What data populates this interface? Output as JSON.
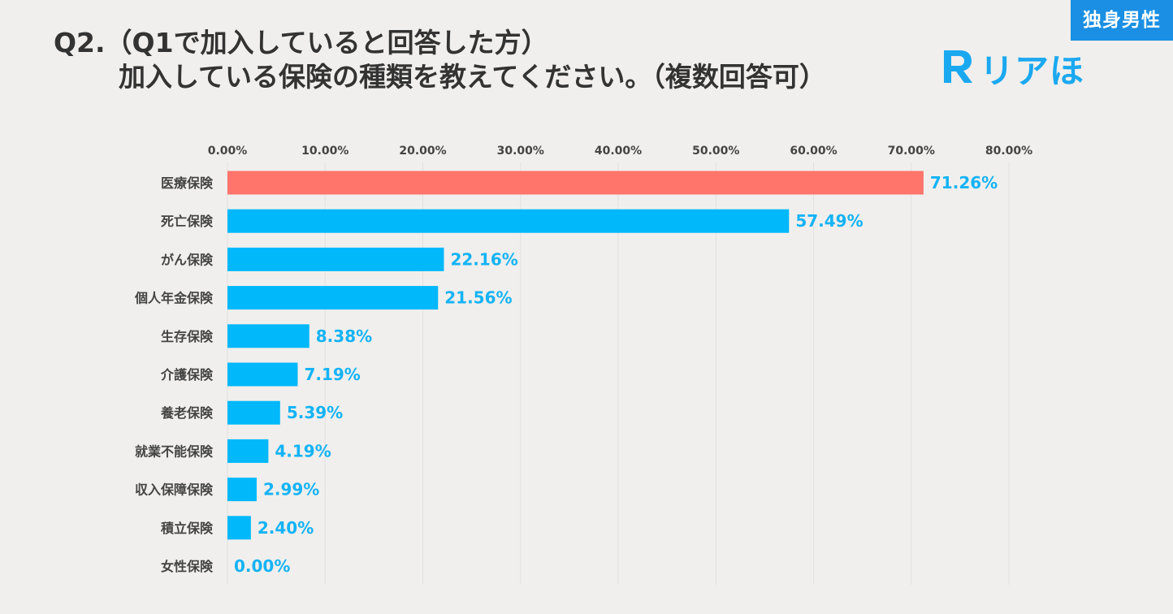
{
  "badge": "独身男性",
  "title": {
    "line1": "Q2.（Q1で加入していると回答した方）",
    "line2": "加入している保険の種類を教えてください。（複数回答可）"
  },
  "logo": {
    "text": "リアほ",
    "letter": "R"
  },
  "colors": {
    "highlight": "#ff756b",
    "bar": "#00b8fa",
    "value_text": "#14b3f5",
    "grid": "#e2e1df",
    "badge": "#1a8fe3"
  },
  "chart_data": {
    "type": "bar",
    "orientation": "horizontal",
    "categories": [
      "医療保険",
      "死亡保険",
      "がん保険",
      "個人年金保険",
      "生存保険",
      "介護保険",
      "養老保険",
      "就業不能保険",
      "収入保障保険",
      "積立保険",
      "女性保険"
    ],
    "values": [
      71.26,
      57.49,
      22.16,
      21.56,
      8.38,
      7.19,
      5.39,
      4.19,
      2.99,
      2.4,
      0.0
    ],
    "value_labels": [
      "71.26%",
      "57.49%",
      "22.16%",
      "21.56%",
      "8.38%",
      "7.19%",
      "5.39%",
      "4.19%",
      "2.99%",
      "2.40%",
      "0.00%"
    ],
    "highlight_index": 0,
    "xlim": [
      0,
      80
    ],
    "xticks": [
      "0.00%",
      "10.00%",
      "20.00%",
      "30.00%",
      "40.00%",
      "50.00%",
      "60.00%",
      "70.00%",
      "80.00%"
    ],
    "axis_position": "top",
    "grid": true,
    "legend": "none"
  }
}
